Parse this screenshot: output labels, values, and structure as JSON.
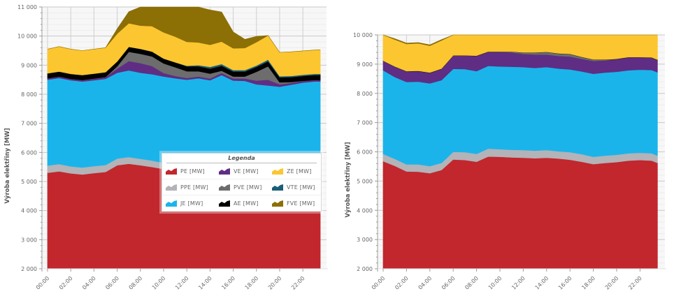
{
  "chart_data": [
    {
      "type": "area",
      "stacked": true,
      "ylabel": "Výroba elektřiny [MW]",
      "ylim": [
        2000,
        11000
      ],
      "ytick_step": 1000,
      "yticks": [
        "2 000",
        "3 000",
        "4 000",
        "5 000",
        "6 000",
        "7 000",
        "8 000",
        "9 000",
        "10 000",
        "11 000"
      ],
      "xtick_labels": [
        "00:00",
        "02:00",
        "04:00",
        "06:00",
        "08:00",
        "10:00",
        "12:00",
        "14:00",
        "16:00",
        "18:00",
        "20:00",
        "22:00"
      ],
      "x_hours": [
        0,
        1,
        2,
        3,
        4,
        5,
        6,
        7,
        8,
        9,
        10,
        11,
        12,
        13,
        14,
        15,
        16,
        17,
        18,
        19,
        20,
        21,
        22,
        23,
        23.5
      ],
      "grid": true,
      "legend_position": "lower-right-inside",
      "series": [
        {
          "name": "PE [MW]",
          "color": "#c1272d",
          "values": [
            3300,
            3350,
            3280,
            3240,
            3290,
            3330,
            3560,
            3610,
            3560,
            3500,
            3430,
            3380,
            3320,
            3380,
            3300,
            3480,
            3260,
            3270,
            3150,
            3130,
            3080,
            3140,
            3220,
            3240,
            3240
          ]
        },
        {
          "name": "PPE [MW]",
          "color": "#b3b3b8",
          "values": [
            250,
            250,
            240,
            240,
            240,
            240,
            230,
            230,
            220,
            220,
            210,
            210,
            210,
            220,
            220,
            220,
            230,
            230,
            220,
            210,
            210,
            210,
            210,
            210,
            210
          ]
        },
        {
          "name": "JE [MW]",
          "color": "#1bb4ea",
          "values": [
            2950,
            2960,
            2960,
            2960,
            2950,
            2960,
            2950,
            2980,
            2960,
            2970,
            2970,
            2960,
            2970,
            2950,
            2960,
            2960,
            2980,
            2960,
            2970,
            2960,
            2970,
            2980,
            2970,
            2990,
            2990
          ]
        },
        {
          "name": "VE [MW]",
          "color": "#5f2d83",
          "values": [
            50,
            50,
            50,
            50,
            60,
            60,
            140,
            320,
            330,
            280,
            120,
            80,
            60,
            60,
            60,
            70,
            70,
            80,
            130,
            200,
            80,
            60,
            60,
            50,
            50
          ]
        },
        {
          "name": "PVE [MW]",
          "color": "#6d6d6d",
          "values": [
            0,
            0,
            0,
            0,
            0,
            0,
            80,
            320,
            320,
            330,
            330,
            300,
            230,
            180,
            170,
            80,
            70,
            70,
            300,
            460,
            70,
            30,
            0,
            0,
            0
          ]
        },
        {
          "name": "AE [MW]",
          "color": "#000000",
          "values": [
            170,
            170,
            170,
            170,
            170,
            170,
            170,
            170,
            170,
            170,
            170,
            170,
            170,
            170,
            170,
            170,
            170,
            170,
            170,
            170,
            170,
            170,
            170,
            170,
            170
          ]
        },
        {
          "name": "VTE [MW]",
          "color": "#1b5e78",
          "values": [
            0,
            0,
            0,
            0,
            0,
            0,
            0,
            0,
            0,
            0,
            0,
            0,
            20,
            40,
            60,
            60,
            50,
            50,
            50,
            60,
            40,
            40,
            40,
            40,
            40
          ]
        },
        {
          "name": "ZE [MW]",
          "color": "#fcc630",
          "values": [
            830,
            860,
            850,
            840,
            840,
            840,
            950,
            810,
            800,
            870,
            900,
            880,
            820,
            780,
            760,
            770,
            750,
            760,
            800,
            830,
            820,
            830,
            820,
            820,
            830
          ]
        },
        {
          "name": "FVE [MW]",
          "color": "#8c6f05",
          "values": [
            0,
            0,
            0,
            0,
            0,
            0,
            170,
            400,
            900,
            1150,
            1300,
            1450,
            1450,
            1350,
            1200,
            1020,
            560,
            300,
            200,
            0,
            0,
            0,
            0,
            0,
            0
          ]
        }
      ]
    },
    {
      "type": "area",
      "stacked": true,
      "ylabel": "Výroba elektřiny [MW]",
      "ylim": [
        2000,
        10000
      ],
      "ytick_step": 1000,
      "yticks": [
        "2 000",
        "3 000",
        "4 000",
        "5 000",
        "6 000",
        "7 000",
        "8 000",
        "9 000",
        "10 000"
      ],
      "xtick_labels": [
        "00:00",
        "02:00",
        "04:00",
        "06:00",
        "08:00",
        "10:00",
        "12:00",
        "14:00",
        "16:00",
        "18:00",
        "20:00",
        "22:00"
      ],
      "x_hours": [
        0,
        1,
        2,
        3,
        4,
        5,
        6,
        7,
        8,
        9,
        10,
        11,
        12,
        13,
        14,
        15,
        16,
        17,
        18,
        19,
        20,
        21,
        22,
        23,
        23.5
      ],
      "grid": true,
      "legend_position": "none",
      "series": [
        {
          "name": "PE [MW]",
          "color": "#c1272d",
          "values": [
            3680,
            3520,
            3330,
            3320,
            3270,
            3380,
            3740,
            3720,
            3660,
            3840,
            3830,
            3810,
            3800,
            3780,
            3800,
            3770,
            3730,
            3660,
            3580,
            3620,
            3650,
            3700,
            3720,
            3700,
            3620
          ]
        },
        {
          "name": "PPE [MW]",
          "color": "#b3b3b8",
          "values": [
            250,
            240,
            240,
            250,
            240,
            240,
            260,
            270,
            270,
            270,
            260,
            260,
            260,
            260,
            260,
            250,
            260,
            260,
            250,
            250,
            250,
            250,
            250,
            250,
            250
          ]
        },
        {
          "name": "JE [MW]",
          "color": "#1bb4ea",
          "values": [
            2860,
            2800,
            2820,
            2830,
            2830,
            2830,
            2840,
            2840,
            2830,
            2830,
            2830,
            2840,
            2840,
            2830,
            2840,
            2830,
            2830,
            2830,
            2840,
            2840,
            2840,
            2840,
            2840,
            2850,
            2850
          ]
        },
        {
          "name": "VE [MW]",
          "color": "#5f2d83",
          "values": [
            320,
            350,
            360,
            360,
            360,
            390,
            450,
            460,
            520,
            480,
            500,
            490,
            450,
            460,
            430,
            430,
            440,
            430,
            440,
            420,
            430,
            440,
            420,
            420,
            420
          ]
        },
        {
          "name": "PVE [MW]",
          "color": "#6d6d6d",
          "values": [
            0,
            0,
            0,
            0,
            0,
            0,
            0,
            0,
            0,
            0,
            0,
            20,
            40,
            60,
            80,
            80,
            80,
            60,
            40,
            20,
            0,
            0,
            0,
            0,
            0
          ]
        },
        {
          "name": "AE [MW]",
          "color": "#000000",
          "values": [
            10,
            10,
            10,
            10,
            10,
            10,
            10,
            10,
            10,
            10,
            10,
            10,
            10,
            10,
            10,
            10,
            10,
            10,
            10,
            10,
            10,
            10,
            10,
            10,
            10
          ]
        },
        {
          "name": "VTE [MW]",
          "color": "#1b5e78",
          "values": [
            0,
            0,
            0,
            0,
            0,
            0,
            0,
            0,
            0,
            0,
            0,
            0,
            0,
            0,
            0,
            0,
            0,
            0,
            0,
            0,
            0,
            0,
            0,
            0,
            0
          ]
        },
        {
          "name": "ZE [MW]",
          "color": "#fcc630",
          "values": [
            940,
            920,
            930,
            940,
            920,
            960,
            960,
            960,
            900,
            960,
            950,
            920,
            930,
            910,
            900,
            930,
            920,
            920,
            970,
            900,
            860,
            850,
            850,
            860,
            860
          ]
        },
        {
          "name": "FVE [MW]",
          "color": "#8c6f05",
          "values": [
            30,
            30,
            30,
            30,
            30,
            30,
            30,
            40,
            60,
            100,
            140,
            180,
            180,
            150,
            170,
            160,
            140,
            120,
            60,
            40,
            30,
            30,
            30,
            30,
            30
          ]
        }
      ]
    }
  ],
  "legend": {
    "title": "Legenda",
    "items": [
      {
        "label": "PE [MW]",
        "color": "#c1272d"
      },
      {
        "label": "VE [MW]",
        "color": "#5f2d83"
      },
      {
        "label": "ZE [MW]",
        "color": "#fcc630"
      },
      {
        "label": "PPE [MW]",
        "color": "#b3b3b8"
      },
      {
        "label": "PVE [MW]",
        "color": "#6d6d6d"
      },
      {
        "label": "VTE [MW]",
        "color": "#1b5e78"
      },
      {
        "label": "JE [MW]",
        "color": "#1bb4ea"
      },
      {
        "label": "AE [MW]",
        "color": "#000000"
      },
      {
        "label": "FVE [MW]",
        "color": "#8c6f05"
      }
    ]
  }
}
